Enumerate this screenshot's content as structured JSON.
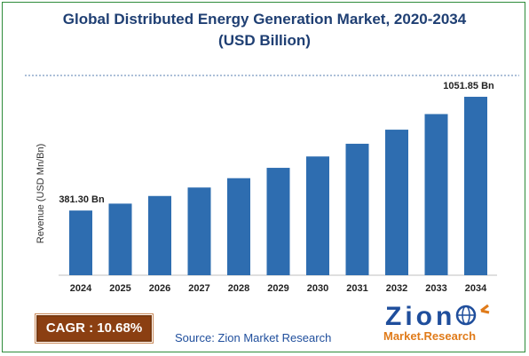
{
  "header": {
    "title_line1": "Global Distributed Energy Generation Market, 2020-2034",
    "title_line2": "(USD Billion)"
  },
  "footer": {
    "cagr": "CAGR : 10.68%",
    "source": "Source: Zion Market Research",
    "logo_top": "Zion",
    "logo_bottom": "Market.Research"
  },
  "colors": {
    "bar": "#2e6db0",
    "title": "#1f3f73",
    "cagr_bg": "#8b3f12",
    "border": "#2e8b3a"
  },
  "chart_data": {
    "type": "bar",
    "title": "Global Distributed Energy Generation Market, 2020-2034 (USD Billion)",
    "xlabel": "",
    "ylabel": "Revenue (USD Mn/Bn)",
    "categories": [
      "2024",
      "2025",
      "2026",
      "2027",
      "2028",
      "2029",
      "2030",
      "2031",
      "2032",
      "2033",
      "2034"
    ],
    "values": [
      381.3,
      422,
      467,
      517,
      572,
      633,
      700,
      775,
      858,
      950,
      1051.85
    ],
    "data_labels": [
      {
        "index": 0,
        "text": "381.30 Bn"
      },
      {
        "index": 10,
        "text": "1051.85 Bn"
      }
    ],
    "ylim": [
      0,
      1120
    ],
    "grid": false,
    "legend": "none"
  }
}
